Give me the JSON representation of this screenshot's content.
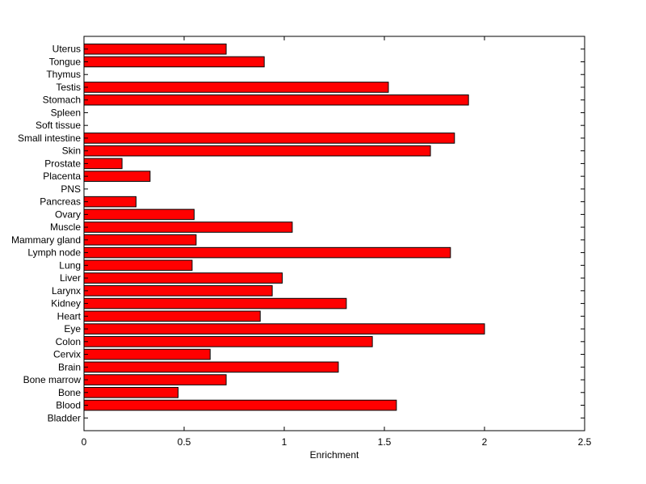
{
  "chart_data": {
    "type": "bar",
    "orientation": "horizontal",
    "title": "",
    "xlabel": "Enrichment",
    "ylabel": "",
    "xlim": [
      0,
      2.5
    ],
    "xticks": [
      0,
      0.5,
      1,
      1.5,
      2,
      2.5
    ],
    "xtick_labels": [
      "0",
      "0.5",
      "1",
      "1.5",
      "2",
      "2.5"
    ],
    "grid": false,
    "bar_color": "#ff0000",
    "edge_color": "#000000",
    "categories": [
      "Bladder",
      "Blood",
      "Bone",
      "Bone marrow",
      "Brain",
      "Cervix",
      "Colon",
      "Eye",
      "Heart",
      "Kidney",
      "Larynx",
      "Liver",
      "Lung",
      "Lymph node",
      "Mammary gland",
      "Muscle",
      "Ovary",
      "Pancreas",
      "PNS",
      "Placenta",
      "Prostate",
      "Skin",
      "Small intestine",
      "Soft tissue",
      "Spleen",
      "Stomach",
      "Testis",
      "Thymus",
      "Tongue",
      "Uterus"
    ],
    "values": [
      0,
      1.56,
      0.47,
      0.71,
      1.27,
      0.63,
      1.44,
      2.0,
      0.88,
      1.31,
      0.94,
      0.99,
      0.54,
      1.83,
      0.56,
      1.04,
      0.55,
      0.26,
      0,
      0.33,
      0.19,
      1.73,
      1.85,
      0,
      0,
      1.92,
      1.52,
      0,
      0.9,
      0.71
    ]
  }
}
